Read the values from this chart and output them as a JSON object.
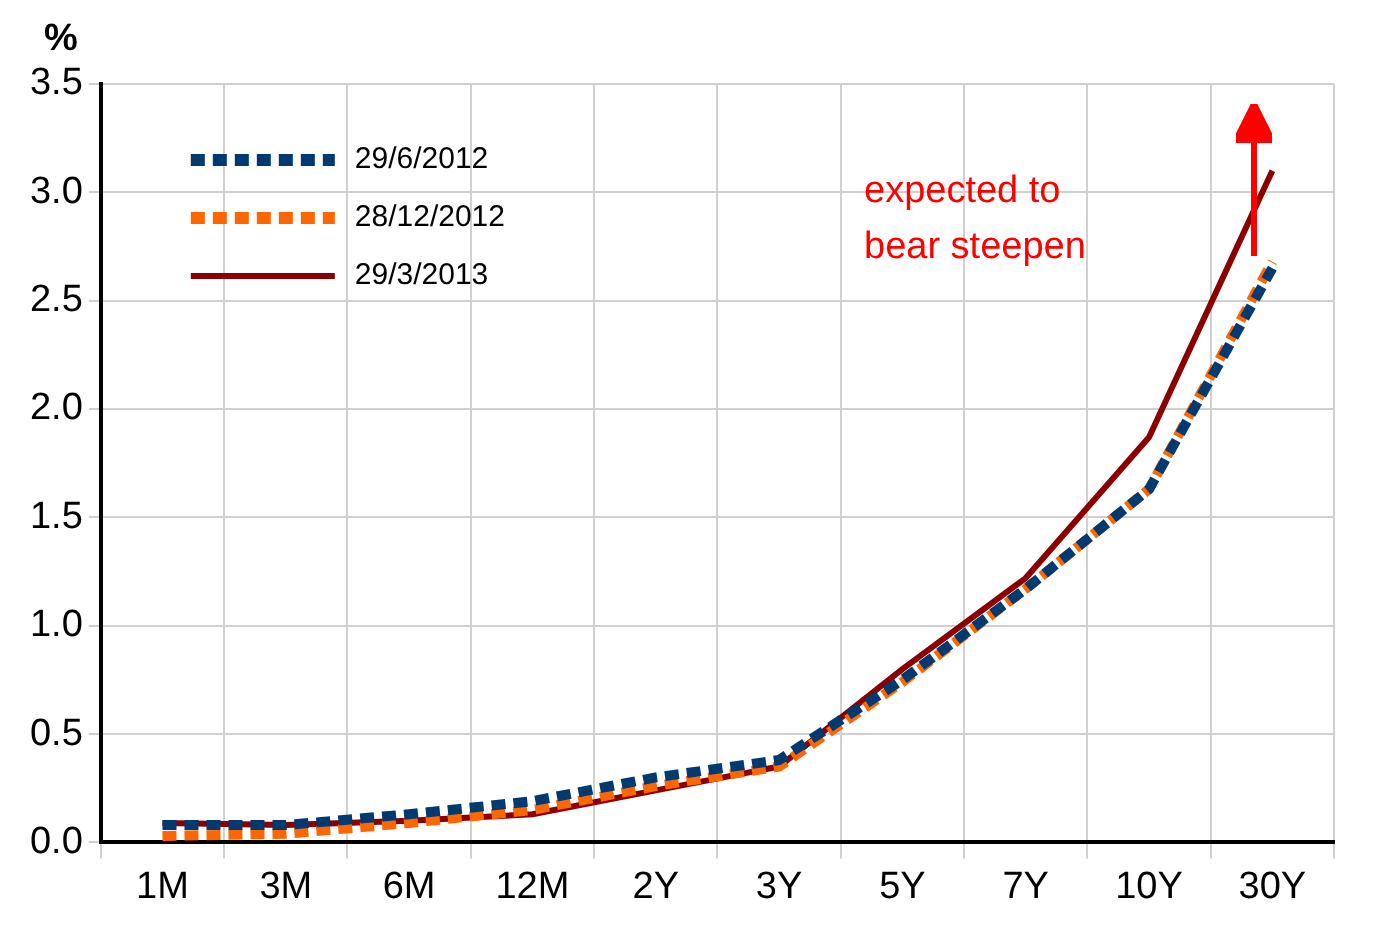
{
  "chart_data": {
    "type": "line",
    "ylabel": "%",
    "categories": [
      "1M",
      "3M",
      "6M",
      "12M",
      "2Y",
      "3Y",
      "5Y",
      "7Y",
      "10Y",
      "30Y"
    ],
    "series": [
      {
        "name": "29/6/2012",
        "color": "#003a70",
        "line_style": "dashed",
        "values": [
          0.08,
          0.08,
          0.13,
          0.19,
          0.3,
          0.38,
          0.75,
          1.17,
          1.63,
          2.65
        ]
      },
      {
        "name": "28/12/2012",
        "color": "#ff6600",
        "line_style": "dashed",
        "values": [
          0.03,
          0.04,
          0.09,
          0.15,
          0.26,
          0.35,
          0.74,
          1.17,
          1.63,
          2.68
        ]
      },
      {
        "name": "29/3/2013",
        "color": "#8b0000",
        "line_style": "solid",
        "values": [
          0.09,
          0.08,
          0.1,
          0.13,
          0.24,
          0.35,
          0.8,
          1.22,
          1.87,
          3.1
        ]
      }
    ],
    "ylim": [
      0,
      3.5
    ],
    "yticks": [
      {
        "value": 0,
        "label": "0.0"
      },
      0.5,
      {
        "value": 1,
        "label": "1.0"
      },
      1.5,
      {
        "value": 2,
        "label": "2.0"
      },
      2.5,
      {
        "value": 3,
        "label": "3.0"
      },
      3.5
    ],
    "grid": true,
    "legend": "top left",
    "marker": "none",
    "annotations": [
      "expected to bear steepen"
    ]
  }
}
